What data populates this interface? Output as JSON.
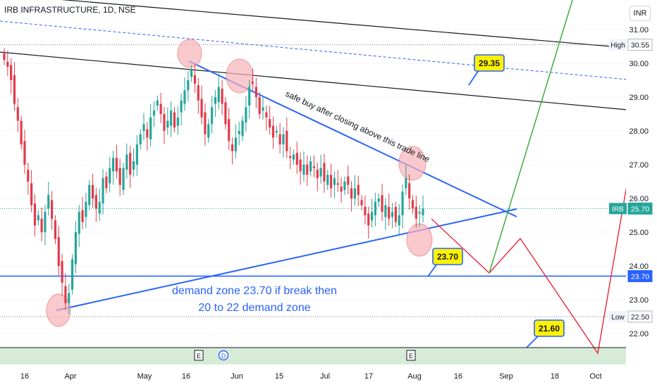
{
  "header": {
    "title": "IRB INFRASTRUCTURE, 1D, NSE",
    "currency": "INR"
  },
  "colors": {
    "bull": "#26a69a",
    "bear": "#e23b4a",
    "blue_line": "#2962ff",
    "green_arrow": "#37a830",
    "red_arrow": "#e8283c",
    "callout_fill": "#fff200",
    "circle_fill": "#f7b3b8"
  },
  "chart_data": {
    "type": "candlestick",
    "symbol": "IRB",
    "ylim": [
      21.4,
      31.4
    ],
    "y_ticks": [
      "31.00",
      "30.00",
      "29.00",
      "28.00",
      "27.00",
      "26.00",
      "25.00",
      "24.00",
      "23.00",
      "22.00"
    ],
    "x_ticks": [
      "16",
      "Apr",
      "May",
      "16",
      "Jun",
      "15",
      "Jul",
      "17",
      "Aug",
      "16",
      "Sep",
      "18",
      "Oct"
    ],
    "last_price": 25.7,
    "price_labels": [
      {
        "label": "High",
        "value": "30.55",
        "y": 30.55
      },
      {
        "label": "IRB",
        "value": "25.70",
        "y": 25.7
      },
      {
        "label": "",
        "value": "23.70",
        "y": 23.7
      },
      {
        "label": "Low",
        "value": "22.50",
        "y": 22.5
      }
    ],
    "event_markers": [
      "E",
      "D",
      "E"
    ],
    "callouts": [
      {
        "text": "29.35",
        "value": 29.35
      },
      {
        "text": "23.70",
        "value": 23.7
      },
      {
        "text": "21.60",
        "value": 21.6
      }
    ],
    "annotations": {
      "trendline_note": "safe buy after closing above this trade line",
      "demand_note_line1": "demand zone 23.70 if break then",
      "demand_note_line2": "20 to 22 demand zone"
    },
    "closes": [
      30.1,
      29.9,
      29.5,
      28.8,
      28.3,
      27.6,
      27.0,
      26.5,
      25.8,
      25.2,
      25.5,
      25.0,
      25.6,
      26.1,
      25.4,
      24.8,
      24.0,
      23.5,
      22.9,
      23.2,
      24.2,
      25.0,
      25.6,
      25.3,
      25.9,
      26.4,
      26.0,
      25.7,
      25.9,
      26.6,
      26.3,
      26.9,
      27.2,
      26.8,
      26.4,
      26.9,
      27.3,
      26.7,
      27.1,
      27.6,
      27.9,
      28.2,
      27.8,
      28.4,
      28.6,
      28.9,
      28.5,
      28.0,
      28.3,
      28.6,
      28.1,
      28.4,
      28.9,
      29.2,
      29.5,
      29.8,
      29.4,
      28.9,
      28.4,
      27.9,
      28.2,
      28.7,
      29.0,
      29.3,
      28.8,
      28.2,
      27.7,
      27.4,
      27.8,
      28.0,
      28.3,
      28.7,
      29.3,
      29.4,
      29.0,
      28.5,
      28.7,
      28.4,
      28.1,
      27.8,
      28.0,
      27.6,
      27.9,
      27.4,
      27.2,
      27.3,
      27.0,
      26.8,
      27.0,
      26.7,
      27.1,
      26.9,
      26.6,
      26.9,
      26.5,
      26.7,
      26.3,
      26.6,
      26.4,
      26.2,
      26.5,
      26.4,
      26.0,
      26.3,
      26.1,
      25.8,
      25.5,
      25.2,
      25.6,
      25.9,
      26.0,
      25.6,
      25.8,
      25.4,
      25.6,
      25.3,
      25.5,
      26.2,
      26.6,
      26.0,
      25.7,
      25.4,
      25.6,
      25.7
    ]
  }
}
